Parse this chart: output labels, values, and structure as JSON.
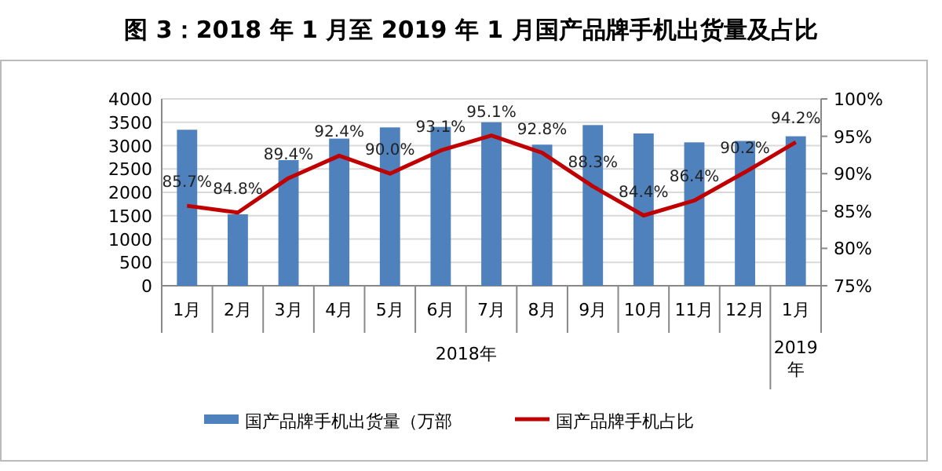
{
  "chart_data": {
    "type": "bar",
    "title": "图 3：2018 年 1 月至 2019 年 1 月国产品牌手机出货量及占比",
    "categories": [
      "1月",
      "2月",
      "3月",
      "4月",
      "5月",
      "6月",
      "7月",
      "8月",
      "9月",
      "10月",
      "11月",
      "12月",
      "1月"
    ],
    "series": [
      {
        "name": "国产品牌手机出货量（万部",
        "color": "#4f81bd",
        "values": [
          3340,
          1530,
          2690,
          3150,
          3390,
          3400,
          3500,
          3020,
          3440,
          3260,
          3070,
          3100,
          3200
        ]
      },
      {
        "name": "国产品牌手机占比",
        "type": "line",
        "axis": "y2",
        "color": "#c00000",
        "values": [
          85.7,
          84.8,
          89.4,
          92.4,
          90.0,
          93.1,
          95.1,
          92.8,
          88.3,
          84.4,
          86.4,
          90.2,
          94.2
        ],
        "value_labels": [
          "85.7%",
          "84.8%",
          "89.4%",
          "92.4%",
          "90.0%",
          "93.1%",
          "95.1%",
          "92.8%",
          "88.3%",
          "84.4%",
          "86.4%",
          "90.2%",
          "94.2%"
        ]
      }
    ],
    "annotations": [
      "2018年",
      "2019年"
    ],
    "ylim": [
      0,
      4000
    ],
    "yticks": [
      0,
      500,
      1000,
      1500,
      2000,
      2500,
      3000,
      3500,
      4000
    ],
    "y2lim": [
      75,
      100
    ],
    "y2ticks": [
      {
        "value": 75,
        "label": "75%"
      },
      {
        "value": 80,
        "label": "80%"
      },
      {
        "value": 85,
        "label": "85%"
      },
      {
        "value": 90,
        "label": "90%"
      },
      {
        "value": 95,
        "label": "95%"
      },
      {
        "value": 100,
        "label": "100%"
      }
    ],
    "grid": "y",
    "legend": "bottom"
  }
}
